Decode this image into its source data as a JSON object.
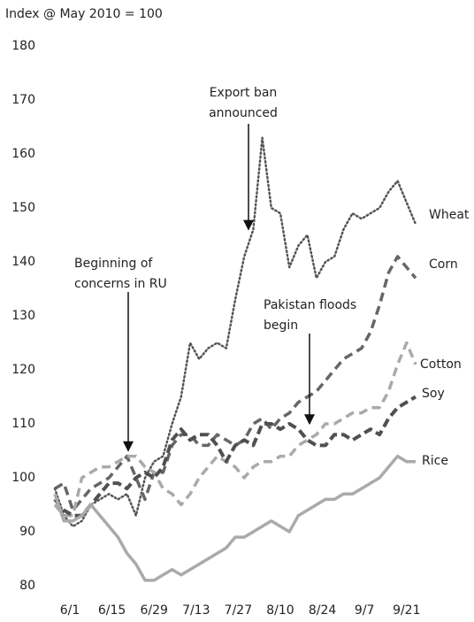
{
  "chart_data": {
    "type": "line",
    "y_label": "Index @ May 2010 = 100",
    "x": [
      -5,
      -2,
      1,
      4,
      7,
      10,
      13,
      16,
      19,
      22,
      25,
      28,
      31,
      34,
      37,
      40,
      43,
      46,
      49,
      52,
      55,
      58,
      61,
      64,
      67,
      70,
      73,
      76,
      79,
      82,
      85,
      88,
      91,
      94,
      97,
      100,
      103,
      106,
      109,
      112,
      115
    ],
    "xlim": [
      -6,
      118
    ],
    "xticks": [
      {
        "value": 0,
        "label": "6/1"
      },
      {
        "value": 14,
        "label": "6/15"
      },
      {
        "value": 28,
        "label": "6/29"
      },
      {
        "value": 42,
        "label": "7/13"
      },
      {
        "value": 56,
        "label": "7/27"
      },
      {
        "value": 70,
        "label": "8/10"
      },
      {
        "value": 84,
        "label": "8/24"
      },
      {
        "value": 98,
        "label": "9/7"
      },
      {
        "value": 112,
        "label": "9/21"
      }
    ],
    "ylim": [
      80,
      180
    ],
    "yticks": [
      80,
      90,
      100,
      110,
      120,
      130,
      140,
      150,
      160,
      170,
      180
    ],
    "grid": false,
    "series": [
      {
        "name": "Wheat",
        "color": "#555555",
        "style": "dotted",
        "values": [
          98,
          93,
          91,
          92,
          95,
          96,
          97,
          96,
          97,
          93,
          100,
          103,
          104,
          110,
          115,
          125,
          122,
          124,
          125,
          124,
          133,
          141,
          146,
          163,
          150,
          149,
          139,
          143,
          145,
          137,
          140,
          141,
          146,
          149,
          148,
          149,
          150,
          153,
          155,
          151,
          147
        ]
      },
      {
        "name": "Corn",
        "color": "#666666",
        "style": "dashed",
        "values": [
          98,
          99,
          94,
          96,
          98,
          99,
          100,
          102,
          104,
          100,
          96,
          101,
          101,
          106,
          108,
          108,
          106,
          106,
          108,
          107,
          106,
          107,
          110,
          111,
          109,
          111,
          112,
          114,
          115,
          116,
          118,
          120,
          122,
          123,
          124,
          127,
          132,
          138,
          141,
          139,
          137
        ]
      },
      {
        "name": "Cotton",
        "color": "#aaaaaa",
        "style": "dashed",
        "values": [
          95,
          93,
          93,
          100,
          101,
          102,
          102,
          103,
          104,
          104,
          102,
          101,
          98,
          97,
          95,
          97,
          100,
          102,
          104,
          103,
          102,
          100,
          102,
          103,
          103,
          104,
          104,
          106,
          107,
          108,
          110,
          110,
          111,
          112,
          112,
          113,
          113,
          116,
          121,
          125,
          121
        ]
      },
      {
        "name": "Soy",
        "color": "#505050",
        "style": "dashed-bold",
        "values": [
          96,
          94,
          93,
          93,
          95,
          97,
          99,
          99,
          98,
          100,
          101,
          100,
          102,
          107,
          109,
          107,
          108,
          108,
          106,
          103,
          106,
          107,
          106,
          110,
          110,
          109,
          110,
          109,
          107,
          106,
          106,
          108,
          108,
          107,
          108,
          109,
          108,
          111,
          113,
          114,
          115
        ]
      },
      {
        "name": "Rice",
        "color": "#aaaaaa",
        "style": "solid",
        "values": [
          97,
          92,
          92,
          93,
          95,
          93,
          91,
          89,
          86,
          84,
          81,
          81,
          82,
          83,
          82,
          83,
          84,
          85,
          86,
          87,
          89,
          89,
          90,
          91,
          92,
          91,
          90,
          93,
          94,
          95,
          96,
          96,
          97,
          97,
          98,
          99,
          100,
          102,
          104,
          103,
          103
        ]
      }
    ],
    "annotations": [
      {
        "lines": [
          "Export ban",
          "announced"
        ],
        "x": 58,
        "y": 146
      },
      {
        "lines": [
          "Beginning of",
          "concerns in RU"
        ],
        "x": 19,
        "y": 105
      },
      {
        "lines": [
          "Pakistan floods",
          "begin"
        ],
        "x": 79,
        "y": 110
      }
    ]
  }
}
